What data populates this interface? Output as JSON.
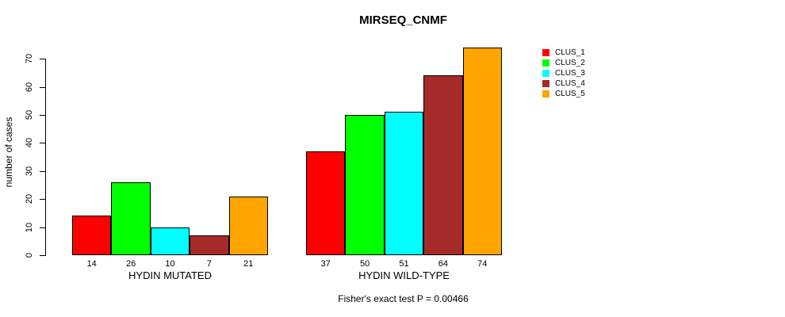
{
  "chart_data": {
    "type": "bar",
    "title": "MIRSEQ_CNMF",
    "ylabel": "number of cases",
    "xlabel": "",
    "ylim": [
      0,
      74
    ],
    "yticks": [
      0,
      10,
      20,
      30,
      40,
      50,
      60,
      70
    ],
    "grid": false,
    "legend_position": "top-right",
    "bar_border_color": "#000000",
    "groups": [
      {
        "label": "HYDIN MUTATED",
        "values": [
          14,
          26,
          10,
          7,
          21
        ]
      },
      {
        "label": "HYDIN WILD-TYPE",
        "values": [
          37,
          50,
          51,
          64,
          74
        ]
      }
    ],
    "series": [
      {
        "name": "CLUS_1",
        "color": "#FF0000"
      },
      {
        "name": "CLUS_2",
        "color": "#00FF00"
      },
      {
        "name": "CLUS_3",
        "color": "#00FFFF"
      },
      {
        "name": "CLUS_4",
        "color": "#A52A2A"
      },
      {
        "name": "CLUS_5",
        "color": "#FFA500"
      }
    ],
    "annotation": "Fisher's exact test P = 0.00466"
  }
}
